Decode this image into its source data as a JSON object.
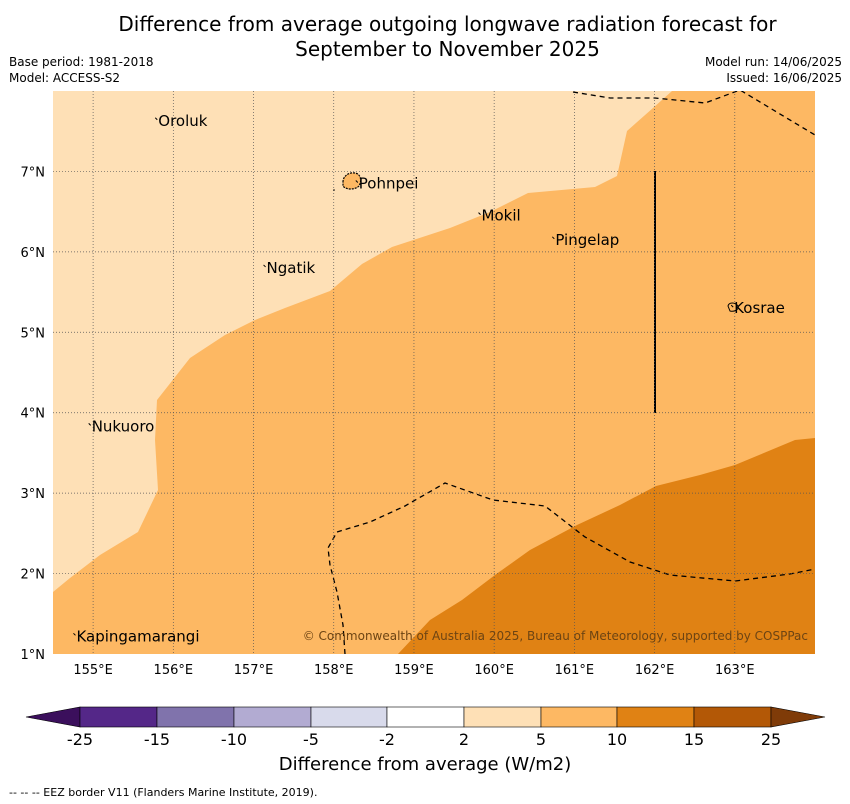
{
  "header": {
    "title_line1": "Difference from average outgoing longwave radiation forecast for",
    "title_line2": "September to November 2025",
    "base_period": "Base period: 1981-2018",
    "model": "Model: ACCESS-S2",
    "model_run": "Model run: 14/06/2025",
    "issued": "Issued: 16/06/2025"
  },
  "map": {
    "lon_range": [
      154.5,
      164.0
    ],
    "lat_range": [
      1.0,
      8.0
    ],
    "lon_ticks": [
      "155°E",
      "156°E",
      "157°E",
      "158°E",
      "159°E",
      "160°E",
      "161°E",
      "162°E",
      "163°E"
    ],
    "lat_ticks": [
      "1°N",
      "2°N",
      "3°N",
      "4°N",
      "5°N",
      "6°N",
      "7°N"
    ],
    "gridlines": true,
    "places": [
      {
        "name": "Oroluk",
        "lon": 155.8,
        "lat": 7.63
      },
      {
        "name": "Pohnpei",
        "lon": 158.3,
        "lat": 6.85
      },
      {
        "name": "Mokil",
        "lon": 159.83,
        "lat": 6.45
      },
      {
        "name": "Pingelap",
        "lon": 160.75,
        "lat": 6.15
      },
      {
        "name": "Ngatik",
        "lon": 157.15,
        "lat": 5.8
      },
      {
        "name": "Kosrae",
        "lon": 162.98,
        "lat": 5.3
      },
      {
        "name": "Nukuoro",
        "lon": 154.97,
        "lat": 3.83
      },
      {
        "name": "Kapingamarangi",
        "lon": 154.78,
        "lat": 1.22
      }
    ],
    "copyright": "© Commonwealth of Australia 2025, Bureau of Meteorology, supported by COSPPac"
  },
  "colorbar": {
    "tick_labels": [
      "-25",
      "-15",
      "-10",
      "-5",
      "-2",
      "2",
      "5",
      "10",
      "15",
      "25"
    ],
    "colors": [
      "#3b0f5c",
      "#542788",
      "#8073ac",
      "#b2abd2",
      "#d8daeb",
      "#ffffff",
      "#fee0b6",
      "#fdb863",
      "#e08214",
      "#b35806",
      "#7f3b08"
    ],
    "title": "Difference from average (W/m2)"
  },
  "footnote": "--  --  -- EEZ border V11 (Flanders Marine Institute, 2019)."
}
